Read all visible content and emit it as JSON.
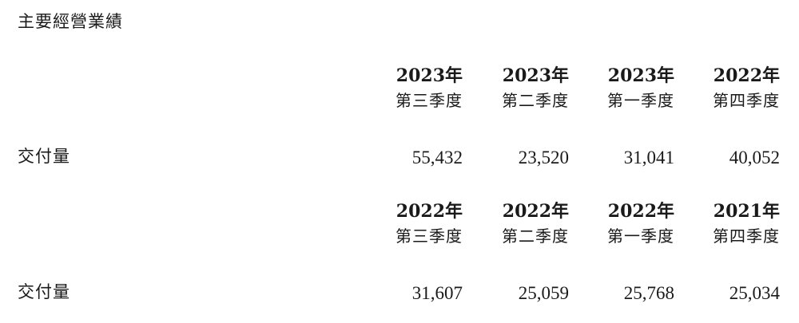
{
  "title": "主要經營業績",
  "sections": [
    {
      "columns": [
        {
          "year": "2023年",
          "quarter": "第三季度"
        },
        {
          "year": "2023年",
          "quarter": "第二季度"
        },
        {
          "year": "2023年",
          "quarter": "第一季度"
        },
        {
          "year": "2022年",
          "quarter": "第四季度"
        }
      ],
      "row_label": "交付量",
      "values": [
        "55,432",
        "23,520",
        "31,041",
        "40,052"
      ]
    },
    {
      "columns": [
        {
          "year": "2022年",
          "quarter": "第三季度"
        },
        {
          "year": "2022年",
          "quarter": "第二季度"
        },
        {
          "year": "2022年",
          "quarter": "第一季度"
        },
        {
          "year": "2021年",
          "quarter": "第四季度"
        }
      ],
      "row_label": "交付量",
      "values": [
        "31,607",
        "25,059",
        "25,768",
        "25,034"
      ]
    }
  ]
}
